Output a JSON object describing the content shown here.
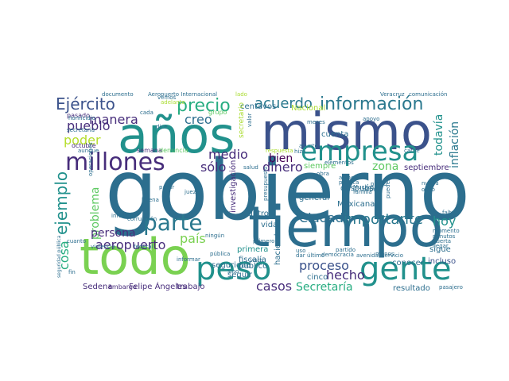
{
  "colors": {
    "background": "#ffffff",
    "palette": [
      "#2c6e8e",
      "#3b528b",
      "#404a8d",
      "#21918c",
      "#27ad81",
      "#5ec962",
      "#7ad151",
      "#aadc32",
      "#dde318",
      "#440154",
      "#472d7b",
      "#2a788e"
    ]
  },
  "words": [
    {
      "text": "gobierno",
      "color": "#2c6e8e"
    },
    {
      "text": "tiempo",
      "color": "#2c6e8e"
    },
    {
      "text": "todo",
      "color": "#7ad151"
    },
    {
      "text": "mismo",
      "color": "#3b528b"
    },
    {
      "text": "años",
      "color": "#21918c"
    },
    {
      "text": "peso",
      "color": "#21918c"
    },
    {
      "text": "gente",
      "color": "#21918c"
    },
    {
      "text": "empresa",
      "color": "#21918c"
    },
    {
      "text": "millones",
      "color": "#472d7b"
    },
    {
      "text": "parte",
      "color": "#2a788e"
    },
    {
      "text": "información",
      "color": "#2a788e"
    },
    {
      "text": "precio",
      "color": "#27ad81"
    },
    {
      "text": "Ejército",
      "color": "#3b528b"
    },
    {
      "text": "manera",
      "color": "#472d7b"
    },
    {
      "text": "pueblo",
      "color": "#472d7b"
    },
    {
      "text": "poder",
      "color": "#b5de2b"
    },
    {
      "text": "ejemplo",
      "color": "#21918c"
    },
    {
      "text": "cosa",
      "color": "#27ad81"
    },
    {
      "text": "problema",
      "color": "#5ec962"
    },
    {
      "text": "persona",
      "color": "#472d7b"
    },
    {
      "text": "aeropuerto",
      "color": "#472d7b"
    },
    {
      "text": "país",
      "color": "#7ad151"
    },
    {
      "text": "creo",
      "color": "#2c6e8e"
    },
    {
      "text": "sólo",
      "color": "#472d7b"
    },
    {
      "text": "medio",
      "color": "#472d7b"
    },
    {
      "text": "dinero",
      "color": "#472d7b"
    },
    {
      "text": "acuerdo",
      "color": "#2a788e"
    },
    {
      "text": "bien",
      "color": "#440154"
    },
    {
      "text": "Ciudad",
      "color": "#2c6e8e"
    },
    {
      "text": "importante",
      "color": "#2a788e"
    },
    {
      "text": "hoy",
      "color": "#21918c"
    },
    {
      "text": "proceso",
      "color": "#3b528b"
    },
    {
      "text": "hecho",
      "color": "#472d7b"
    },
    {
      "text": "casos",
      "color": "#472d7b"
    },
    {
      "text": "Secretaría",
      "color": "#27ad81"
    },
    {
      "text": "zona",
      "color": "#5ec962"
    },
    {
      "text": "inflación",
      "color": "#2a788e"
    },
    {
      "text": "todavía",
      "color": "#21918c"
    },
    {
      "text": "Felipe Ángeles",
      "color": "#472d7b"
    },
    {
      "text": "trabajo",
      "color": "#472d7b"
    },
    {
      "text": "Sedena",
      "color": "#472d7b"
    },
    {
      "text": "embargo",
      "color": "#472d7b"
    },
    {
      "text": "resultado",
      "color": "#2c6e8e"
    },
    {
      "text": "incluso",
      "color": "#3b528b"
    },
    {
      "text": "conocer",
      "color": "#2c6e8e"
    },
    {
      "text": "cuenta",
      "color": "#2c6e8e"
    },
    {
      "text": "después",
      "color": "#2c6e8e"
    },
    {
      "text": "Mexicana",
      "color": "#2c6e8e"
    },
    {
      "text": "general",
      "color": "#2c6e8e"
    },
    {
      "text": "siempre",
      "color": "#5ec962"
    },
    {
      "text": "septiembre",
      "color": "#472d7b"
    },
    {
      "text": "centavos",
      "color": "#2c6e8e"
    },
    {
      "text": "Nacional",
      "color": "#aadc32"
    },
    {
      "text": "octubre",
      "color": "#472d7b"
    },
    {
      "text": "pasado",
      "color": "#472d7b"
    },
    {
      "text": "semana",
      "color": "#472d7b"
    },
    {
      "text": "denuncia",
      "color": "#5ec962"
    },
    {
      "text": "grupo",
      "color": "#5ec962"
    },
    {
      "text": "fiscalía",
      "color": "#2c6e8e"
    },
    {
      "text": "público",
      "color": "#2c6e8e"
    },
    {
      "text": "primera",
      "color": "#21918c"
    },
    {
      "text": "vida",
      "color": "#2c6e8e"
    },
    {
      "text": "seguir",
      "color": "#2c6e8e"
    },
    {
      "text": "seguridad",
      "color": "#2c6e8e"
    },
    {
      "text": "investigación",
      "color": "#472d7b"
    },
    {
      "text": "haciendo",
      "color": "#2c6e8e"
    },
    {
      "text": "cinco",
      "color": "#2c6e8e"
    },
    {
      "text": "sigue",
      "color": "#2c6e8e"
    },
    {
      "text": "cuatro",
      "color": "#2c6e8e"
    },
    {
      "text": "secretario",
      "color": "#aadc32"
    },
    {
      "text": "documento",
      "color": "#2c6e8e"
    },
    {
      "text": "Aeropuerto Internacional",
      "color": "#2c6e8e"
    },
    {
      "text": "lado",
      "color": "#aadc32"
    },
    {
      "text": "Veracruz",
      "color": "#2c6e8e"
    },
    {
      "text": "comunicación",
      "color": "#2c6e8e"
    },
    {
      "text": "vemos",
      "color": "#2c6e8e"
    },
    {
      "text": "adelante",
      "color": "#aadc32"
    },
    {
      "text": "apoyo",
      "color": "#2c6e8e"
    },
    {
      "text": "meses",
      "color": "#2c6e8e"
    },
    {
      "text": "homicidio",
      "color": "#2c6e8e"
    },
    {
      "text": "cada",
      "color": "#2c6e8e"
    },
    {
      "text": "aunque",
      "color": "#2c6e8e"
    },
    {
      "text": "secretaria",
      "color": "#2c6e8e"
    },
    {
      "text": "cuanto",
      "color": "#2c6e8e"
    },
    {
      "text": "corrupción",
      "color": "#2c6e8e"
    },
    {
      "text": "partir",
      "color": "#2c6e8e"
    },
    {
      "text": "informe",
      "color": "#2c6e8e"
    },
    {
      "text": "juez",
      "color": "#2c6e8e"
    },
    {
      "text": "buena",
      "color": "#2c6e8e"
    },
    {
      "text": "violencia",
      "color": "#2c6e8e"
    },
    {
      "text": "federal",
      "color": "#2c6e8e"
    },
    {
      "text": "pública",
      "color": "#2c6e8e"
    },
    {
      "text": "ningún",
      "color": "#2c6e8e"
    },
    {
      "text": "informar",
      "color": "#2c6e8e"
    },
    {
      "text": "sino",
      "color": "#2c6e8e"
    },
    {
      "text": "fin",
      "color": "#2c6e8e"
    },
    {
      "text": "seguridad pública",
      "color": "#2c6e8e"
    },
    {
      "text": "carne",
      "color": "#2c6e8e"
    },
    {
      "text": "obra",
      "color": "#2c6e8e"
    },
    {
      "text": "política",
      "color": "#2c6e8e"
    },
    {
      "text": "alimentos",
      "color": "#2c6e8e"
    },
    {
      "text": "Muchas",
      "color": "#2c6e8e"
    },
    {
      "text": "familia",
      "color": "#2c6e8e"
    },
    {
      "text": "pueden",
      "color": "#2c6e8e"
    },
    {
      "text": "nueva",
      "color": "#2c6e8e"
    },
    {
      "text": "ocho",
      "color": "#2c6e8e"
    },
    {
      "text": "falta",
      "color": "#2c6e8e"
    },
    {
      "text": "momento",
      "color": "#2c6e8e"
    },
    {
      "text": "minutos",
      "color": "#2c6e8e"
    },
    {
      "text": "puerta",
      "color": "#2c6e8e"
    },
    {
      "text": "llegar",
      "color": "#2c6e8e"
    },
    {
      "text": "partido",
      "color": "#2c6e8e"
    },
    {
      "text": "menos",
      "color": "#2c6e8e"
    },
    {
      "text": "pasajero",
      "color": "#2c6e8e"
    },
    {
      "text": "democracia",
      "color": "#2c6e8e"
    },
    {
      "text": "avenida",
      "color": "#2c6e8e"
    },
    {
      "text": "servicio",
      "color": "#2c6e8e"
    },
    {
      "text": "último",
      "color": "#2c6e8e"
    },
    {
      "text": "dar",
      "color": "#2c6e8e"
    },
    {
      "text": "asunto",
      "color": "#2c6e8e"
    },
    {
      "text": "salud",
      "color": "#2c6e8e"
    },
    {
      "text": "primero",
      "color": "#2c6e8e"
    },
    {
      "text": "presupuesto",
      "color": "#2c6e8e"
    },
    {
      "text": "respuesta",
      "color": "#aadc32"
    },
    {
      "text": "valor",
      "color": "#2c6e8e"
    },
    {
      "text": "elementos",
      "color": "#2c6e8e"
    },
    {
      "text": "punto",
      "color": "#2c6e8e"
    },
    {
      "text": "operaciones",
      "color": "#2c6e8e"
    },
    {
      "text": "debe",
      "color": "#2c6e8e"
    },
    {
      "text": "visto",
      "color": "#2c6e8e"
    },
    {
      "text": "dice",
      "color": "#2c6e8e"
    },
    {
      "text": "uso",
      "color": "#2c6e8e"
    },
    {
      "text": "hizo",
      "color": "#2c6e8e"
    }
  ]
}
